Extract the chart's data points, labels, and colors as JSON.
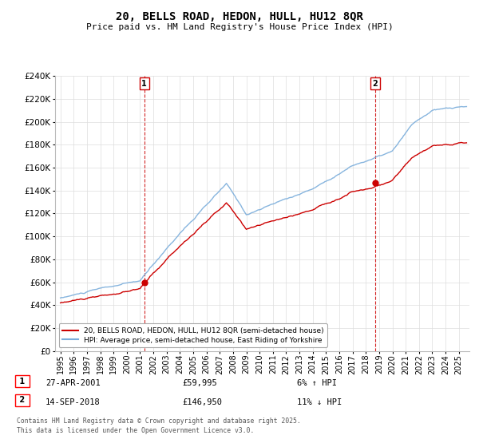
{
  "title": "20, BELLS ROAD, HEDON, HULL, HU12 8QR",
  "subtitle": "Price paid vs. HM Land Registry's House Price Index (HPI)",
  "ylim": [
    0,
    240000
  ],
  "yticks": [
    0,
    20000,
    40000,
    60000,
    80000,
    100000,
    120000,
    140000,
    160000,
    180000,
    200000,
    220000,
    240000
  ],
  "sale1_date": "27-APR-2001",
  "sale1_price": 59995,
  "sale1_hpi": "6% ↑ HPI",
  "sale1_label": "1",
  "sale1_x": 2001.32,
  "sale2_date": "14-SEP-2018",
  "sale2_price": 146950,
  "sale2_hpi": "11% ↓ HPI",
  "sale2_label": "2",
  "sale2_x": 2018.71,
  "legend_line1": "20, BELLS ROAD, HEDON, HULL, HU12 8QR (semi-detached house)",
  "legend_line2": "HPI: Average price, semi-detached house, East Riding of Yorkshire",
  "footnote": "Contains HM Land Registry data © Crown copyright and database right 2025.\nThis data is licensed under the Open Government Licence v3.0.",
  "line_color_red": "#cc0000",
  "line_color_blue": "#7aaddb",
  "background_color": "#ffffff",
  "grid_color": "#dddddd",
  "sale_marker_color": "#cc0000",
  "vline_color": "#cc0000",
  "xlim_left": 1994.6,
  "xlim_right": 2025.8
}
